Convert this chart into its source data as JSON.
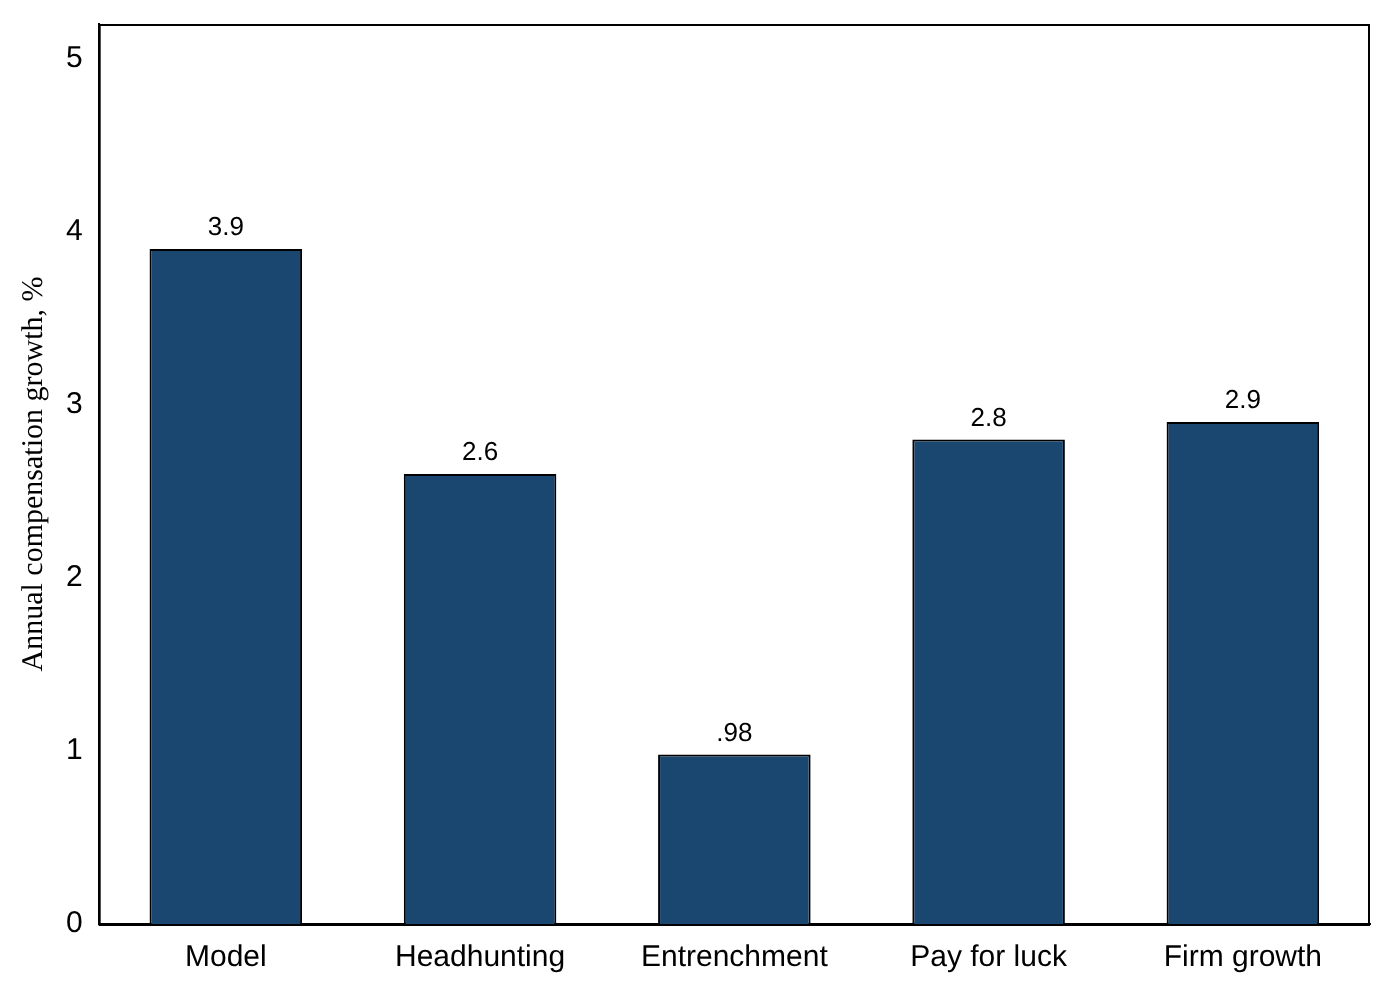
{
  "chart_data": {
    "type": "bar",
    "ylabel": "Annual compensation growth, %",
    "categories": [
      "Model",
      "Headhunting",
      "Entrenchment",
      "Pay for luck",
      "Firm growth"
    ],
    "values": [
      3.9,
      2.6,
      0.98,
      2.8,
      2.9
    ],
    "value_labels": [
      "3.9",
      "2.6",
      ".98",
      "2.8",
      "2.9"
    ],
    "color": "#1a476f",
    "ylim": [
      0,
      5.2
    ],
    "yticks": [
      0,
      1,
      2,
      3,
      4,
      5
    ],
    "grid": false,
    "legend": false
  }
}
